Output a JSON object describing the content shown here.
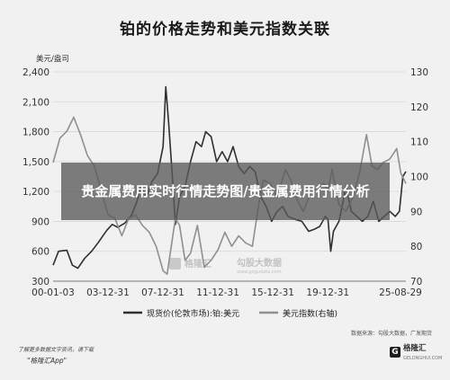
{
  "chart_data": {
    "type": "line",
    "title": "铂的价格走势和美元指数关联",
    "y_left_label": "美元/盎司",
    "y_left_ticks": [
      300,
      600,
      900,
      1200,
      1500,
      1800,
      2100,
      2400
    ],
    "y_left_lim": [
      300,
      2400
    ],
    "y_right_ticks": [
      70,
      80,
      90,
      100,
      110,
      120,
      130
    ],
    "y_right_lim": [
      70,
      130
    ],
    "x_ticks": [
      "00-01-03",
      "03-12-31",
      "07-12-31",
      "11-12-31",
      "15-12-31",
      "19-12-31",
      "25-08-29"
    ],
    "x_lim": [
      2000.0,
      2025.67
    ],
    "grid": "horizontal",
    "legend_position": "bottom",
    "series": [
      {
        "name": "现货价(伦敦市场):铂:美元",
        "axis": "left",
        "color": "#2f2f2f",
        "x": [
          2000.0,
          2000.4,
          2001.0,
          2001.4,
          2001.8,
          2002.3,
          2002.8,
          2003.3,
          2003.9,
          2004.3,
          2004.7,
          2005.2,
          2005.7,
          2006.1,
          2006.4,
          2006.8,
          2007.2,
          2007.6,
          2008.0,
          2008.2,
          2008.4,
          2008.7,
          2008.9,
          2009.2,
          2009.6,
          2010.0,
          2010.4,
          2010.8,
          2011.1,
          2011.5,
          2011.9,
          2012.3,
          2012.7,
          2013.1,
          2013.5,
          2013.9,
          2014.3,
          2014.7,
          2015.1,
          2015.5,
          2015.9,
          2016.3,
          2016.7,
          2017.1,
          2017.6,
          2018.1,
          2018.6,
          2019.0,
          2019.4,
          2019.8,
          2020.0,
          2020.2,
          2020.4,
          2020.8,
          2021.1,
          2021.3,
          2021.7,
          2022.1,
          2022.5,
          2022.9,
          2023.3,
          2023.7,
          2024.1,
          2024.5,
          2024.9,
          2025.2,
          2025.45,
          2025.67
        ],
        "values": [
          460,
          600,
          610,
          460,
          430,
          530,
          600,
          690,
          810,
          870,
          840,
          880,
          960,
          1100,
          1250,
          1150,
          1300,
          1380,
          1650,
          2250,
          1900,
          1300,
          870,
          1150,
          1250,
          1500,
          1700,
          1650,
          1800,
          1750,
          1500,
          1600,
          1500,
          1650,
          1450,
          1380,
          1450,
          1400,
          1150,
          1050,
          900,
          1000,
          1050,
          950,
          920,
          900,
          800,
          820,
          850,
          950,
          920,
          600,
          800,
          900,
          1100,
          1250,
          1000,
          950,
          900,
          950,
          1100,
          900,
          950,
          1000,
          950,
          1000,
          1350,
          1400
        ]
      },
      {
        "name": "美元指数(右轴)",
        "axis": "right",
        "color": "#8f8f8f",
        "x": [
          2000.0,
          2000.5,
          2001.0,
          2001.5,
          2002.0,
          2002.5,
          2003.0,
          2003.5,
          2004.0,
          2004.5,
          2005.0,
          2005.5,
          2006.0,
          2006.5,
          2007.0,
          2007.5,
          2008.0,
          2008.3,
          2008.9,
          2009.2,
          2009.6,
          2010.0,
          2010.5,
          2011.0,
          2011.5,
          2012.0,
          2012.5,
          2013.0,
          2013.5,
          2014.0,
          2014.5,
          2015.0,
          2015.3,
          2015.8,
          2016.3,
          2016.9,
          2017.3,
          2017.8,
          2018.2,
          2018.7,
          2019.2,
          2019.7,
          2020.0,
          2020.3,
          2020.8,
          2021.3,
          2021.8,
          2022.3,
          2022.8,
          2023.2,
          2023.6,
          2024.0,
          2024.5,
          2025.0,
          2025.3,
          2025.67
        ],
        "values": [
          104,
          111,
          113,
          117,
          112,
          106,
          103,
          96,
          89,
          88,
          83,
          88,
          89,
          86,
          84,
          80,
          73,
          72,
          88,
          86,
          76,
          78,
          86,
          74,
          76,
          79,
          84,
          80,
          83,
          81,
          80,
          93,
          99,
          98,
          94,
          102,
          99,
          93,
          90,
          95,
          97,
          98,
          96,
          102,
          92,
          90,
          94,
          101,
          112,
          103,
          102,
          104,
          105,
          108,
          101,
          98
        ]
      }
    ]
  },
  "overlay_text": "贵金属费用实时行情走势图/贵金属费用行情分析",
  "watermark": {
    "brand1": "格隆汇",
    "brand2": "勾股大数据",
    "url": "www.gogudata.com"
  },
  "source_text": "数据来源：勾股大数据，广发期货",
  "footer": {
    "note": "了解更多数据文字资讯，请下载",
    "app": "\"格隆汇App\"",
    "logo_text": "格隆汇",
    "logo_sub": "GELONGHUI.COM"
  },
  "colors": {
    "background": "#f1f1f1",
    "grid": "#d6d6d6",
    "platinum_line": "#2f2f2f",
    "dxy_line": "#8f8f8f"
  }
}
